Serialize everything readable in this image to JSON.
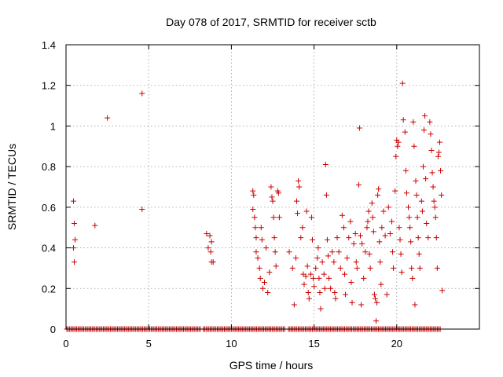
{
  "chart_data": {
    "type": "scatter",
    "title": "Day 078 of 2017, SRMTID for receiver sctb",
    "xlabel": "GPS time / hours",
    "ylabel": "SRMTID / TECUs",
    "xlim": [
      0,
      25
    ],
    "ylim": [
      0,
      1.4
    ],
    "xticks": [
      0,
      5,
      10,
      15,
      20
    ],
    "xtick_labels": [
      "0",
      "5",
      "10",
      "15",
      "20"
    ],
    "yticks": [
      0,
      0.2,
      0.4,
      0.6,
      0.8,
      1.0,
      1.2,
      1.4
    ],
    "ytick_labels": [
      "0",
      "0.2",
      "0.4",
      "0.6",
      "0.8",
      "1",
      "1.2",
      "1.4"
    ],
    "grid": true,
    "marker": "+",
    "color": "#cc0000",
    "series": [
      {
        "name": "SRMTID",
        "points": [
          [
            0.45,
            0.63
          ],
          [
            0.5,
            0.52
          ],
          [
            0.45,
            0.4
          ],
          [
            0.55,
            0.44
          ],
          [
            0.5,
            0.33
          ],
          [
            1.75,
            0.51
          ],
          [
            2.5,
            1.04
          ],
          [
            4.6,
            1.16
          ],
          [
            4.6,
            0.59
          ],
          [
            8.5,
            0.47
          ],
          [
            8.6,
            0.4
          ],
          [
            8.7,
            0.46
          ],
          [
            8.8,
            0.33
          ],
          [
            8.75,
            0.38
          ],
          [
            8.9,
            0.33
          ],
          [
            8.8,
            0.43
          ],
          [
            11.3,
            0.68
          ],
          [
            11.35,
            0.66
          ],
          [
            11.3,
            0.59
          ],
          [
            11.4,
            0.55
          ],
          [
            11.45,
            0.5
          ],
          [
            11.5,
            0.45
          ],
          [
            11.5,
            0.38
          ],
          [
            11.6,
            0.35
          ],
          [
            11.7,
            0.3
          ],
          [
            11.75,
            0.25
          ],
          [
            11.8,
            0.5
          ],
          [
            11.85,
            0.44
          ],
          [
            11.9,
            0.2
          ],
          [
            12.0,
            0.23
          ],
          [
            12.1,
            0.4
          ],
          [
            12.2,
            0.18
          ],
          [
            12.3,
            0.28
          ],
          [
            12.4,
            0.7
          ],
          [
            12.45,
            0.65
          ],
          [
            12.5,
            0.63
          ],
          [
            12.55,
            0.55
          ],
          [
            12.6,
            0.45
          ],
          [
            12.65,
            0.38
          ],
          [
            12.7,
            0.31
          ],
          [
            12.8,
            0.68
          ],
          [
            12.85,
            0.67
          ],
          [
            12.9,
            0.55
          ],
          [
            13.5,
            0.38
          ],
          [
            13.7,
            0.3
          ],
          [
            13.8,
            0.12
          ],
          [
            13.9,
            0.35
          ],
          [
            13.95,
            0.63
          ],
          [
            14.0,
            0.57
          ],
          [
            14.05,
            0.73
          ],
          [
            14.1,
            0.7
          ],
          [
            14.2,
            0.45
          ],
          [
            14.3,
            0.5
          ],
          [
            14.35,
            0.27
          ],
          [
            14.4,
            0.22
          ],
          [
            14.5,
            0.26
          ],
          [
            14.55,
            0.58
          ],
          [
            14.6,
            0.31
          ],
          [
            14.65,
            0.18
          ],
          [
            14.7,
            0.15
          ],
          [
            14.8,
            0.27
          ],
          [
            14.85,
            0.55
          ],
          [
            14.9,
            0.44
          ],
          [
            14.95,
            0.25
          ],
          [
            15.0,
            0.21
          ],
          [
            15.1,
            0.3
          ],
          [
            15.2,
            0.35
          ],
          [
            15.25,
            0.4
          ],
          [
            15.3,
            0.25
          ],
          [
            15.35,
            0.18
          ],
          [
            15.4,
            0.1
          ],
          [
            15.5,
            0.33
          ],
          [
            15.6,
            0.27
          ],
          [
            15.65,
            0.2
          ],
          [
            15.7,
            0.81
          ],
          [
            15.75,
            0.66
          ],
          [
            15.8,
            0.44
          ],
          [
            15.85,
            0.36
          ],
          [
            15.9,
            0.25
          ],
          [
            16.0,
            0.2
          ],
          [
            16.1,
            0.38
          ],
          [
            16.2,
            0.33
          ],
          [
            16.25,
            0.18
          ],
          [
            16.3,
            0.15
          ],
          [
            16.4,
            0.45
          ],
          [
            16.5,
            0.38
          ],
          [
            16.6,
            0.3
          ],
          [
            16.7,
            0.56
          ],
          [
            16.8,
            0.5
          ],
          [
            16.85,
            0.27
          ],
          [
            16.9,
            0.17
          ],
          [
            17.0,
            0.35
          ],
          [
            17.1,
            0.45
          ],
          [
            17.2,
            0.53
          ],
          [
            17.25,
            0.23
          ],
          [
            17.3,
            0.13
          ],
          [
            17.4,
            0.42
          ],
          [
            17.5,
            0.47
          ],
          [
            17.55,
            0.33
          ],
          [
            17.6,
            0.3
          ],
          [
            17.7,
            0.71
          ],
          [
            17.75,
            0.99
          ],
          [
            17.8,
            0.46
          ],
          [
            17.85,
            0.12
          ],
          [
            17.9,
            0.42
          ],
          [
            18.0,
            0.25
          ],
          [
            18.1,
            0.38
          ],
          [
            18.2,
            0.5
          ],
          [
            18.25,
            0.53
          ],
          [
            18.3,
            0.58
          ],
          [
            18.35,
            0.37
          ],
          [
            18.4,
            0.3
          ],
          [
            18.5,
            0.62
          ],
          [
            18.55,
            0.55
          ],
          [
            18.6,
            0.48
          ],
          [
            18.65,
            0.17
          ],
          [
            18.7,
            0.15
          ],
          [
            18.75,
            0.04
          ],
          [
            18.8,
            0.13
          ],
          [
            18.85,
            0.66
          ],
          [
            18.9,
            0.69
          ],
          [
            18.95,
            0.43
          ],
          [
            19.0,
            0.33
          ],
          [
            19.05,
            0.22
          ],
          [
            19.1,
            0.5
          ],
          [
            19.2,
            0.58
          ],
          [
            19.3,
            0.46
          ],
          [
            19.4,
            0.17
          ],
          [
            19.5,
            0.6
          ],
          [
            19.6,
            0.47
          ],
          [
            19.7,
            0.53
          ],
          [
            19.75,
            0.38
          ],
          [
            19.8,
            0.3
          ],
          [
            19.9,
            0.68
          ],
          [
            19.95,
            0.85
          ],
          [
            20.0,
            0.93
          ],
          [
            20.05,
            0.9
          ],
          [
            20.1,
            0.92
          ],
          [
            20.15,
            0.5
          ],
          [
            20.2,
            0.44
          ],
          [
            20.25,
            0.37
          ],
          [
            20.3,
            0.28
          ],
          [
            20.35,
            1.21
          ],
          [
            20.4,
            1.03
          ],
          [
            20.5,
            0.97
          ],
          [
            20.55,
            0.78
          ],
          [
            20.6,
            0.67
          ],
          [
            20.7,
            0.6
          ],
          [
            20.75,
            0.55
          ],
          [
            20.8,
            0.5
          ],
          [
            20.85,
            0.43
          ],
          [
            20.9,
            0.3
          ],
          [
            20.95,
            0.25
          ],
          [
            21.0,
            1.02
          ],
          [
            21.05,
            0.9
          ],
          [
            21.1,
            0.12
          ],
          [
            21.15,
            0.73
          ],
          [
            21.2,
            0.66
          ],
          [
            21.25,
            0.55
          ],
          [
            21.3,
            0.45
          ],
          [
            21.35,
            0.37
          ],
          [
            21.4,
            0.3
          ],
          [
            21.5,
            0.63
          ],
          [
            21.55,
            0.58
          ],
          [
            21.6,
            0.8
          ],
          [
            21.65,
            0.98
          ],
          [
            21.7,
            1.05
          ],
          [
            21.75,
            0.74
          ],
          [
            21.8,
            0.52
          ],
          [
            21.9,
            0.45
          ],
          [
            22.0,
            1.02
          ],
          [
            22.05,
            0.96
          ],
          [
            22.1,
            0.88
          ],
          [
            22.15,
            0.77
          ],
          [
            22.2,
            0.7
          ],
          [
            22.25,
            0.63
          ],
          [
            22.3,
            0.6
          ],
          [
            22.35,
            0.55
          ],
          [
            22.4,
            0.45
          ],
          [
            22.45,
            0.3
          ],
          [
            22.5,
            0.85
          ],
          [
            22.55,
            0.87
          ],
          [
            22.6,
            0.92
          ],
          [
            22.65,
            0.78
          ],
          [
            22.7,
            0.66
          ],
          [
            22.75,
            0.19
          ]
        ],
        "baseline_zero_ranges": [
          [
            0.05,
            8.2
          ],
          [
            8.3,
            13.3
          ],
          [
            13.45,
            22.7
          ]
        ]
      }
    ]
  }
}
